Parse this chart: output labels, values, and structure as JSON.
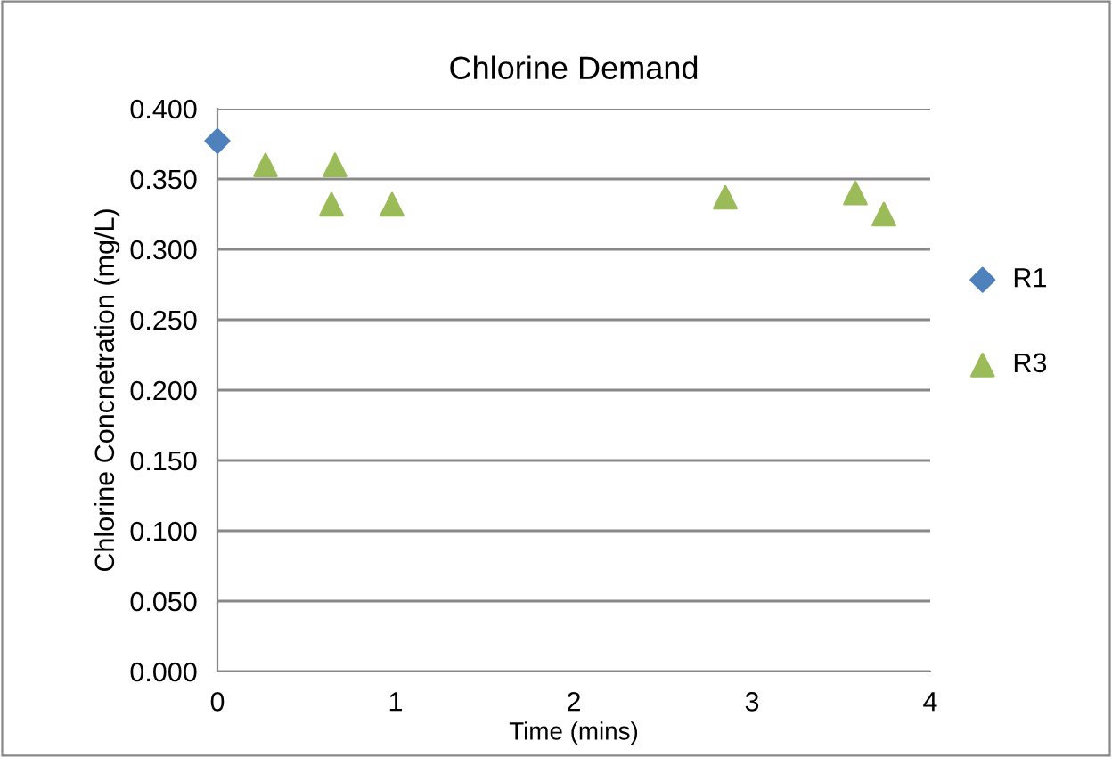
{
  "chart_data": {
    "type": "scatter",
    "title": "Chlorine Demand",
    "xlabel": "Time (mins)",
    "ylabel": "Chlorine Concnetration (mg/L)",
    "series": [
      {
        "name": "R1",
        "color": "#4f81bd",
        "marker": "diamond",
        "x": [
          0
        ],
        "values": [
          0.377
        ]
      },
      {
        "name": "R3",
        "color": "#9bbb59",
        "marker": "triangle",
        "x": [
          0.27,
          0.64,
          0.66,
          0.98,
          2.85,
          3.58,
          3.74
        ],
        "values": [
          0.36,
          0.332,
          0.36,
          0.332,
          0.337,
          0.34,
          0.325
        ]
      }
    ],
    "xlim": [
      0,
      4
    ],
    "xticks": [
      0,
      1,
      2,
      3,
      4
    ],
    "ylim": [
      0,
      0.4
    ],
    "yticks": [
      {
        "value": 0,
        "label": "0.000"
      },
      {
        "value": 0.05,
        "label": "0.050"
      },
      {
        "value": 0.1,
        "label": "0.100"
      },
      {
        "value": 0.15,
        "label": "0.150"
      },
      {
        "value": 0.2,
        "label": "0.200"
      },
      {
        "value": 0.25,
        "label": "0.250"
      },
      {
        "value": 0.3,
        "label": "0.300"
      },
      {
        "value": 0.35,
        "label": "0.350"
      },
      {
        "value": 0.4,
        "label": "0.400"
      }
    ],
    "grid": "y",
    "legend": "right"
  }
}
